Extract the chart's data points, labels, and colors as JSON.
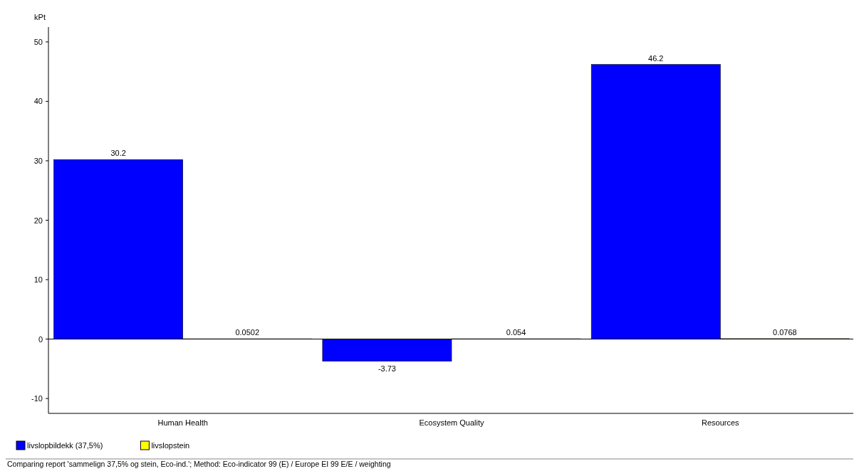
{
  "chart_data": {
    "type": "bar",
    "ylabel": "kPt",
    "categories": [
      "Human Health",
      "Ecosystem Quality",
      "Resources"
    ],
    "series": [
      {
        "name": "livslopbildekk (37,5%)",
        "color": "#0000ff",
        "values": [
          30.2,
          -3.73,
          46.2
        ]
      },
      {
        "name": "livslopstein",
        "color": "#ffff00",
        "values": [
          0.0502,
          0.054,
          0.0768
        ]
      }
    ],
    "ylim": [
      -12.5,
      52.5
    ],
    "yticks": [
      -10,
      0,
      10,
      20,
      30,
      40,
      50
    ],
    "data_labels": true,
    "legend": "bottom left",
    "annotations": [
      "Comparing report 'sammelign 37,5% og stein, Eco-ind.'; Method: Eco-indicator 99 (E) / Europe EI 99 E/E / weighting"
    ]
  }
}
